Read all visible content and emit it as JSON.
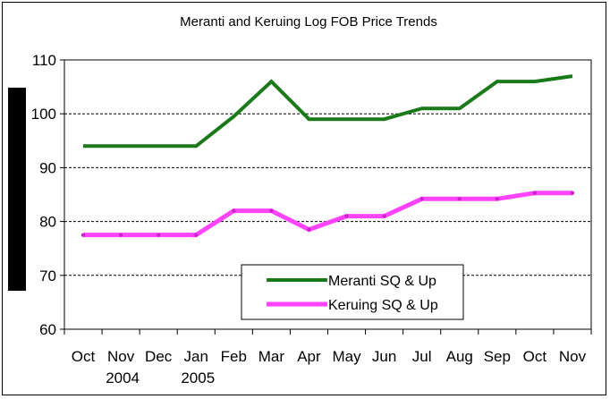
{
  "chart_data": {
    "type": "line",
    "title": "Meranti and Keruing Log FOB Price Trends",
    "xlabel": "",
    "ylabel": "",
    "categories": [
      "Oct",
      "Nov",
      "Dec",
      "Jan",
      "Feb",
      "Mar",
      "Apr",
      "May",
      "Jun",
      "Jul",
      "Aug",
      "Sep",
      "Oct",
      "Nov"
    ],
    "year_labels": [
      {
        "category_index": 1,
        "label": "2004"
      },
      {
        "category_index": 3,
        "label": "2005"
      }
    ],
    "ylim": [
      60,
      110
    ],
    "yticks": [
      60,
      70,
      80,
      90,
      100,
      110
    ],
    "grid": "horizontal-dashed",
    "legend_position": "bottom-center",
    "series": [
      {
        "name": "Meranti SQ & Up",
        "color": "#1a7a1a",
        "values": [
          94,
          94,
          94,
          94,
          99.5,
          106,
          99,
          99,
          99,
          101,
          101,
          106,
          106,
          107
        ]
      },
      {
        "name": "Keruing SQ & Up",
        "color": "#ff44ff",
        "values": [
          77.5,
          77.5,
          77.5,
          77.5,
          82,
          82,
          78.5,
          81,
          81,
          84.2,
          84.2,
          84.2,
          85.3,
          85.3
        ]
      }
    ]
  }
}
